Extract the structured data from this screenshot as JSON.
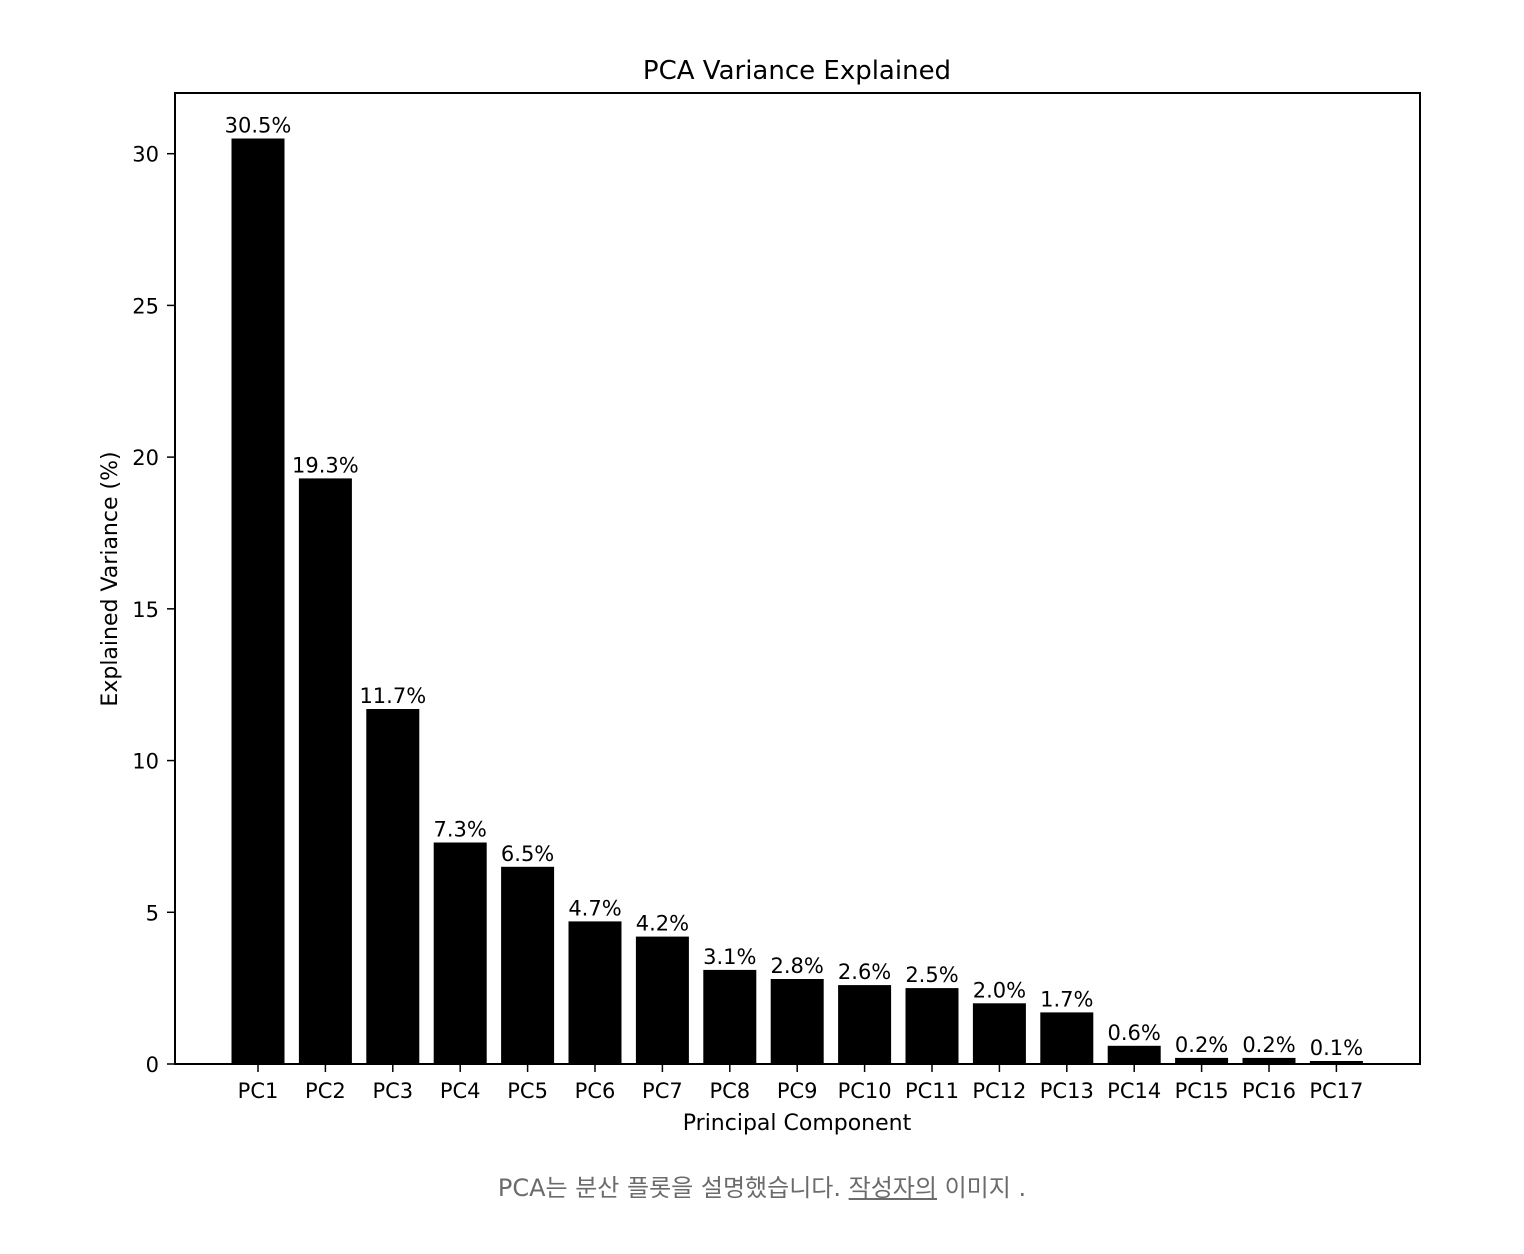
{
  "chart_data": {
    "type": "bar",
    "title": "PCA Variance Explained",
    "xlabel": "Principal Component",
    "ylabel": "Explained Variance (%)",
    "categories": [
      "PC1",
      "PC2",
      "PC3",
      "PC4",
      "PC5",
      "PC6",
      "PC7",
      "PC8",
      "PC9",
      "PC10",
      "PC11",
      "PC12",
      "PC13",
      "PC14",
      "PC15",
      "PC16",
      "PC17"
    ],
    "values": [
      30.5,
      19.3,
      11.7,
      7.3,
      6.5,
      4.7,
      4.2,
      3.1,
      2.8,
      2.6,
      2.5,
      2.0,
      1.7,
      0.6,
      0.2,
      0.2,
      0.1
    ],
    "data_labels": [
      "30.5%",
      "19.3%",
      "11.7%",
      "7.3%",
      "6.5%",
      "4.7%",
      "4.2%",
      "3.1%",
      "2.8%",
      "2.6%",
      "2.5%",
      "2.0%",
      "1.7%",
      "0.6%",
      "0.2%",
      "0.2%",
      "0.1%"
    ],
    "ylim": [
      0,
      32
    ],
    "yticks": [
      0,
      5,
      10,
      15,
      20,
      25,
      30
    ],
    "grid": false,
    "bar_color": "#000000"
  },
  "caption": {
    "prefix": "PCA는 분산 플롯을 설명했습니다. ",
    "link_text": "작성자의",
    "suffix": " 이미지 ."
  }
}
